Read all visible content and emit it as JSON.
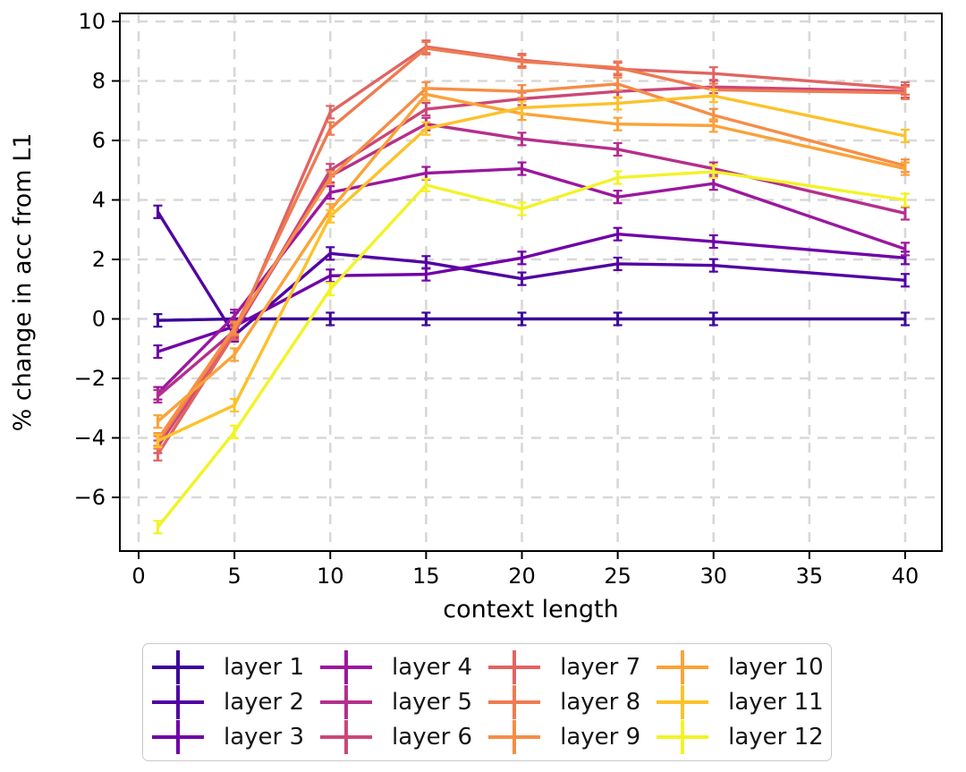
{
  "figure": {
    "xlabel": "context length",
    "ylabel": "% change in acc from L1"
  },
  "chart_data": {
    "type": "line",
    "x": [
      1,
      5,
      10,
      15,
      20,
      25,
      30,
      40
    ],
    "xlabel": "context length",
    "ylabel": "% change in acc from L1",
    "xtick_labels": [
      "0",
      "5",
      "10",
      "15",
      "20",
      "25",
      "30",
      "35",
      "40"
    ],
    "xticks": [
      0,
      5,
      10,
      15,
      20,
      25,
      30,
      35,
      40
    ],
    "ytick_labels": [
      "−6",
      "−4",
      "−2",
      "0",
      "2",
      "4",
      "6",
      "8",
      "10"
    ],
    "yticks": [
      -6,
      -4,
      -2,
      0,
      2,
      4,
      6,
      8,
      10
    ],
    "xlim": [
      -1.0,
      41.9
    ],
    "ylim": [
      -7.8,
      10.3
    ],
    "grid": true,
    "grid_style": "dashed",
    "grid_color": "#d8d8d8",
    "marker_style": "errorbar-caps",
    "legend_position": "below-outside",
    "legend_order": "column-major-4-columns",
    "series": [
      {
        "name": "layer 1",
        "color": "#3b049a",
        "values": [
          -0.05,
          0,
          0,
          0,
          0,
          0,
          0,
          0
        ]
      },
      {
        "name": "layer 2",
        "color": "#5102a3",
        "values": [
          3.6,
          -0.55,
          2.2,
          1.9,
          1.35,
          1.85,
          1.8,
          1.3
        ]
      },
      {
        "name": "layer 3",
        "color": "#6f00a8",
        "values": [
          -1.1,
          -0.25,
          1.45,
          1.5,
          2.05,
          2.85,
          2.6,
          2.05
        ]
      },
      {
        "name": "layer 4",
        "color": "#9c179e",
        "values": [
          -2.5,
          0.1,
          4.25,
          4.9,
          5.05,
          4.1,
          4.55,
          2.35
        ]
      },
      {
        "name": "layer 5",
        "color": "#b52f8c",
        "values": [
          -2.6,
          -0.4,
          4.8,
          6.55,
          6.05,
          5.7,
          5.05,
          3.55
        ]
      },
      {
        "name": "layer 6",
        "color": "#cc4778",
        "values": [
          -4.3,
          -0.45,
          5.0,
          7.05,
          7.4,
          7.65,
          7.8,
          7.65
        ]
      },
      {
        "name": "layer 7",
        "color": "#e16462",
        "values": [
          -4.55,
          -0.5,
          6.95,
          9.15,
          8.7,
          8.4,
          8.25,
          7.75
        ]
      },
      {
        "name": "layer 8",
        "color": "#ee7b51",
        "values": [
          -4.15,
          -0.35,
          6.4,
          9.1,
          8.65,
          8.45,
          7.7,
          7.6
        ]
      },
      {
        "name": "layer 9",
        "color": "#f68d45",
        "values": [
          -4.05,
          -0.3,
          4.75,
          7.75,
          7.65,
          7.9,
          6.85,
          5.15
        ]
      },
      {
        "name": "layer 10",
        "color": "#fba238",
        "values": [
          -3.45,
          -1.2,
          3.65,
          7.55,
          6.9,
          6.55,
          6.5,
          5.05
        ]
      },
      {
        "name": "layer 11",
        "color": "#fcc22a",
        "values": [
          -4.1,
          -2.9,
          3.45,
          6.4,
          7.1,
          7.25,
          7.5,
          6.15
        ]
      },
      {
        "name": "layer 12",
        "color": "#f2f326",
        "values": [
          -7.0,
          -3.8,
          1.0,
          4.5,
          3.7,
          4.75,
          4.95,
          4.0
        ]
      }
    ]
  }
}
